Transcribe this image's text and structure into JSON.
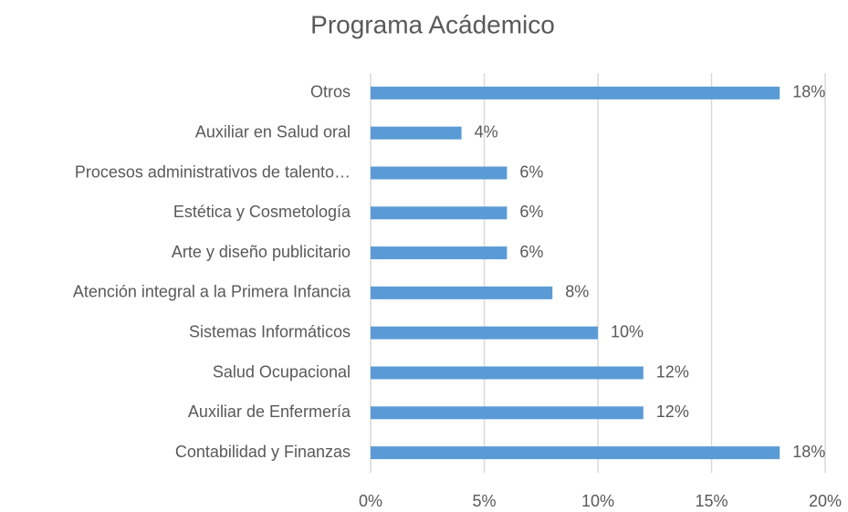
{
  "chart_data": {
    "type": "bar",
    "orientation": "horizontal",
    "title": "Programa Acádemico",
    "categories": [
      "Otros",
      "Auxiliar en Salud oral",
      "Procesos administrativos de talento…",
      "Estética y Cosmetología",
      "Arte y diseño publicitario",
      "Atención integral a la Primera Infancia",
      "Sistemas Informáticos",
      "Salud Ocupacional",
      "Auxiliar de Enfermería",
      "Contabilidad y Finanzas"
    ],
    "values": [
      18,
      4,
      6,
      6,
      6,
      8,
      10,
      12,
      12,
      18
    ],
    "value_labels": [
      "18%",
      "4%",
      "6%",
      "6%",
      "6%",
      "8%",
      "10%",
      "12%",
      "12%",
      "18%"
    ],
    "color": "#5b9bd5",
    "xlim": [
      0,
      20
    ],
    "xticks": [
      {
        "value": 0,
        "label": "0%"
      },
      {
        "value": 5,
        "label": "5%"
      },
      {
        "value": 10,
        "label": "10%"
      },
      {
        "value": 15,
        "label": "15%"
      },
      {
        "value": 20,
        "label": "20%"
      }
    ],
    "grid": true
  }
}
